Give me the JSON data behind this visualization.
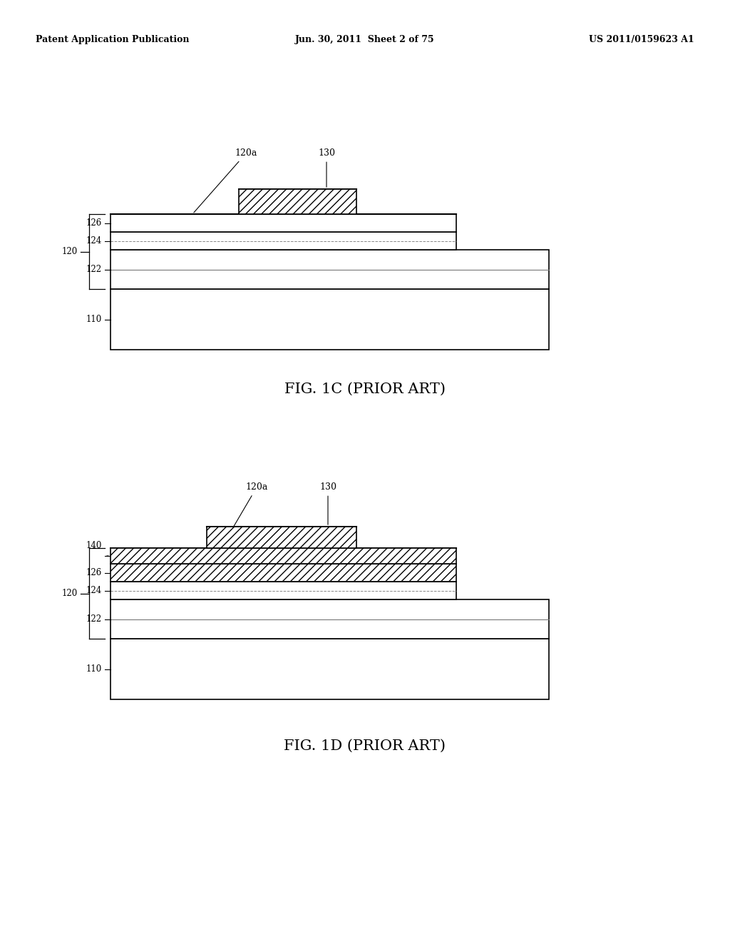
{
  "background_color": "#ffffff",
  "header": {
    "left": "Patent Application Publication",
    "center": "Jun. 30, 2011  Sheet 2 of 75",
    "right": "US 2011/0159623 A1"
  },
  "fig1c_caption": "FIG. 1C (PRIOR ART)",
  "fig1d_caption": "FIG. 1D (PRIOR ART)"
}
